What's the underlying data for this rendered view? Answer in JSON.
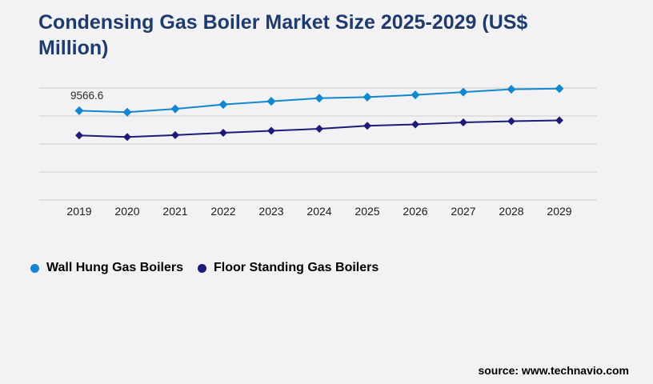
{
  "title": "Condensing Gas Boiler Market Size 2025-2029 (US$ Million)",
  "source": "source: www.technavio.com",
  "colors": {
    "background": "#f2f2f4",
    "title": "#1f3b6d",
    "gridline": "#cccccc",
    "wall_hung": "#1286cf",
    "floor_standing": "#1c1c78",
    "tick_text": "#1a1a1a",
    "annotation_text": "#2b2b2b"
  },
  "chart_data": {
    "type": "line",
    "title": "Condensing Gas Boiler Market Size 2025-2029 (US$ Million)",
    "xlabel": "",
    "ylabel": "US$ Million",
    "categories": [
      "2019",
      "2020",
      "2021",
      "2022",
      "2023",
      "2024",
      "2025",
      "2026",
      "2027",
      "2028",
      "2029"
    ],
    "series": [
      {
        "name": "Wall Hung Gas Boilers",
        "color_key": "wall_hung",
        "marker": "diamond",
        "values": [
          9566.6,
          9410,
          9760,
          10230,
          10570,
          10910,
          11020,
          11260,
          11560,
          11860,
          11940
        ]
      },
      {
        "name": "Floor Standing Gas Boilers",
        "color_key": "floor_standing",
        "marker": "diamond",
        "values": [
          6920,
          6750,
          6950,
          7200,
          7410,
          7630,
          7950,
          8100,
          8310,
          8440,
          8530
        ]
      }
    ],
    "annotation": {
      "text": "9566.6",
      "series": 0,
      "index": 0
    },
    "ylim": [
      0,
      12000
    ],
    "grid_step": 3000,
    "grid": "horizontal",
    "y_axis_labels_shown": false,
    "legend_position": "bottom-left"
  }
}
